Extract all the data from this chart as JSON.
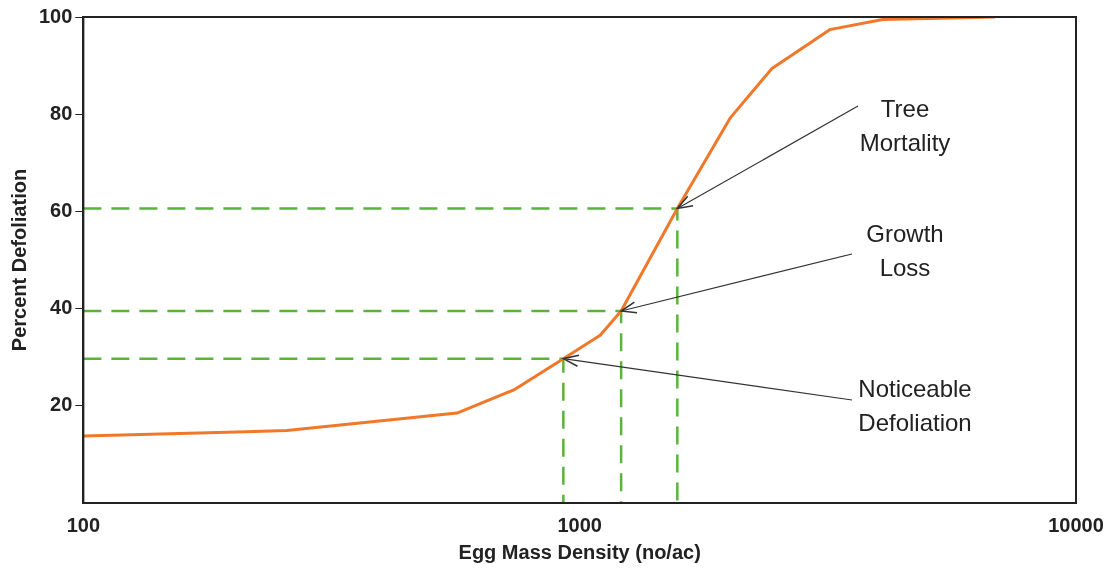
{
  "chart_data": {
    "type": "line",
    "xlabel": "Egg Mass Density (no/ac)",
    "ylabel": "Percent Defoliation",
    "log": "x",
    "xlim": [
      100,
      10000
    ],
    "xticks": [
      100,
      1000,
      10000
    ],
    "ylim": [
      0,
      100
    ],
    "yticks": [
      20,
      40,
      60,
      80,
      100
    ],
    "grid": false,
    "legend": false,
    "series": [
      {
        "color": "#f07828",
        "line_style": "solid",
        "x": [
          100,
          257,
          566,
          738,
          927,
          1100,
          1212,
          1573,
          2013,
          2440,
          3190,
          4080,
          6870
        ],
        "values": [
          13.8,
          14.9,
          18.5,
          23.3,
          29.7,
          34.5,
          39.5,
          60.6,
          79.3,
          89.4,
          97.4,
          99.5,
          100
        ]
      },
      {
        "type": "line",
        "color": "#5ab43c",
        "line_style": "dashed",
        "x": [
          100,
          927,
          927
        ],
        "values": [
          29.7,
          29.7,
          0
        ]
      },
      {
        "type": "line",
        "color": "#5ab43c",
        "line_style": "dashed",
        "x": [
          100,
          1212,
          1212
        ],
        "values": [
          39.5,
          39.5,
          0
        ]
      },
      {
        "type": "line",
        "color": "#5ab43c",
        "line_style": "dashed",
        "x": [
          100,
          1573,
          1573
        ],
        "values": [
          60.6,
          60.6,
          0
        ]
      }
    ],
    "annotations": [
      {
        "text": "Tree Mortality",
        "x": 1573,
        "y": 60.6
      },
      {
        "text": "Growth Loss",
        "x": 1212,
        "y": 39.5
      },
      {
        "text": "Noticeable Defoliation",
        "x": 927,
        "y": 29.7
      }
    ]
  }
}
